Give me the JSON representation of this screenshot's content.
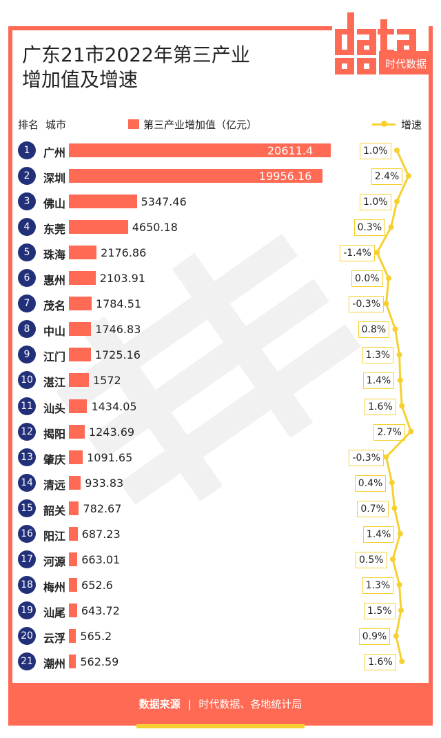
{
  "title": "广东21市2022年第三产业增加值及增速",
  "title_line1": "广东21市2022年第三产业",
  "title_line2": "增加值及增速",
  "logo": {
    "text_top": "data",
    "text_bottom": "时代数据"
  },
  "headers": {
    "rank": "排名",
    "city": "城市",
    "value": "第三产业增加值（亿元）",
    "growth": "增速"
  },
  "footer": {
    "label": "数据来源",
    "sep": "|",
    "source": "时代数据、各地统计局"
  },
  "colors": {
    "bar": "#ff6a54",
    "rank_circle": "#22307a",
    "growth_line": "#f6d02f",
    "frame": "#ff6a54"
  },
  "chart_data": {
    "type": "bar",
    "orientation": "horizontal",
    "categories": [
      "广州",
      "深圳",
      "佛山",
      "东莞",
      "珠海",
      "惠州",
      "茂名",
      "中山",
      "江门",
      "湛江",
      "汕头",
      "揭阳",
      "肇庆",
      "清远",
      "韶关",
      "阳江",
      "河源",
      "梅州",
      "汕尾",
      "云浮",
      "潮州"
    ],
    "ranks": [
      "1",
      "2",
      "3",
      "4",
      "5",
      "6",
      "7",
      "8",
      "9",
      "10",
      "11",
      "12",
      "13",
      "14",
      "15",
      "16",
      "17",
      "18",
      "19",
      "20",
      "21"
    ],
    "series": [
      {
        "name": "第三产业增加值（亿元）",
        "values": [
          20611.4,
          19956.16,
          5347.46,
          4650.18,
          2176.86,
          2103.91,
          1784.51,
          1746.83,
          1725.16,
          1572,
          1434.05,
          1243.69,
          1091.65,
          933.83,
          782.67,
          687.23,
          663.01,
          652.6,
          643.72,
          565.2,
          562.59
        ],
        "labels": [
          "20611.4",
          "19956.16",
          "5347.46",
          "4650.18",
          "2176.86",
          "2103.91",
          "1784.51",
          "1746.83",
          "1725.16",
          "1572",
          "1434.05",
          "1243.69",
          "1091.65",
          "933.83",
          "782.67",
          "687.23",
          "663.01",
          "652.6",
          "643.72",
          "565.2",
          "562.59"
        ]
      },
      {
        "name": "增速",
        "values": [
          1.0,
          2.4,
          1.0,
          0.3,
          -1.4,
          0.0,
          -0.3,
          0.8,
          1.3,
          1.4,
          1.6,
          2.7,
          -0.3,
          0.4,
          0.7,
          1.4,
          0.5,
          1.3,
          1.5,
          0.9,
          1.6
        ],
        "labels": [
          "1.0%",
          "2.4%",
          "1.0%",
          "0.3%",
          "-1.4%",
          "0.0%",
          "-0.3%",
          "0.8%",
          "1.3%",
          "1.4%",
          "1.6%",
          "2.7%",
          "-0.3%",
          "0.4%",
          "0.7%",
          "1.4%",
          "0.5%",
          "1.3%",
          "1.5%",
          "0.9%",
          "1.6%"
        ]
      }
    ]
  }
}
